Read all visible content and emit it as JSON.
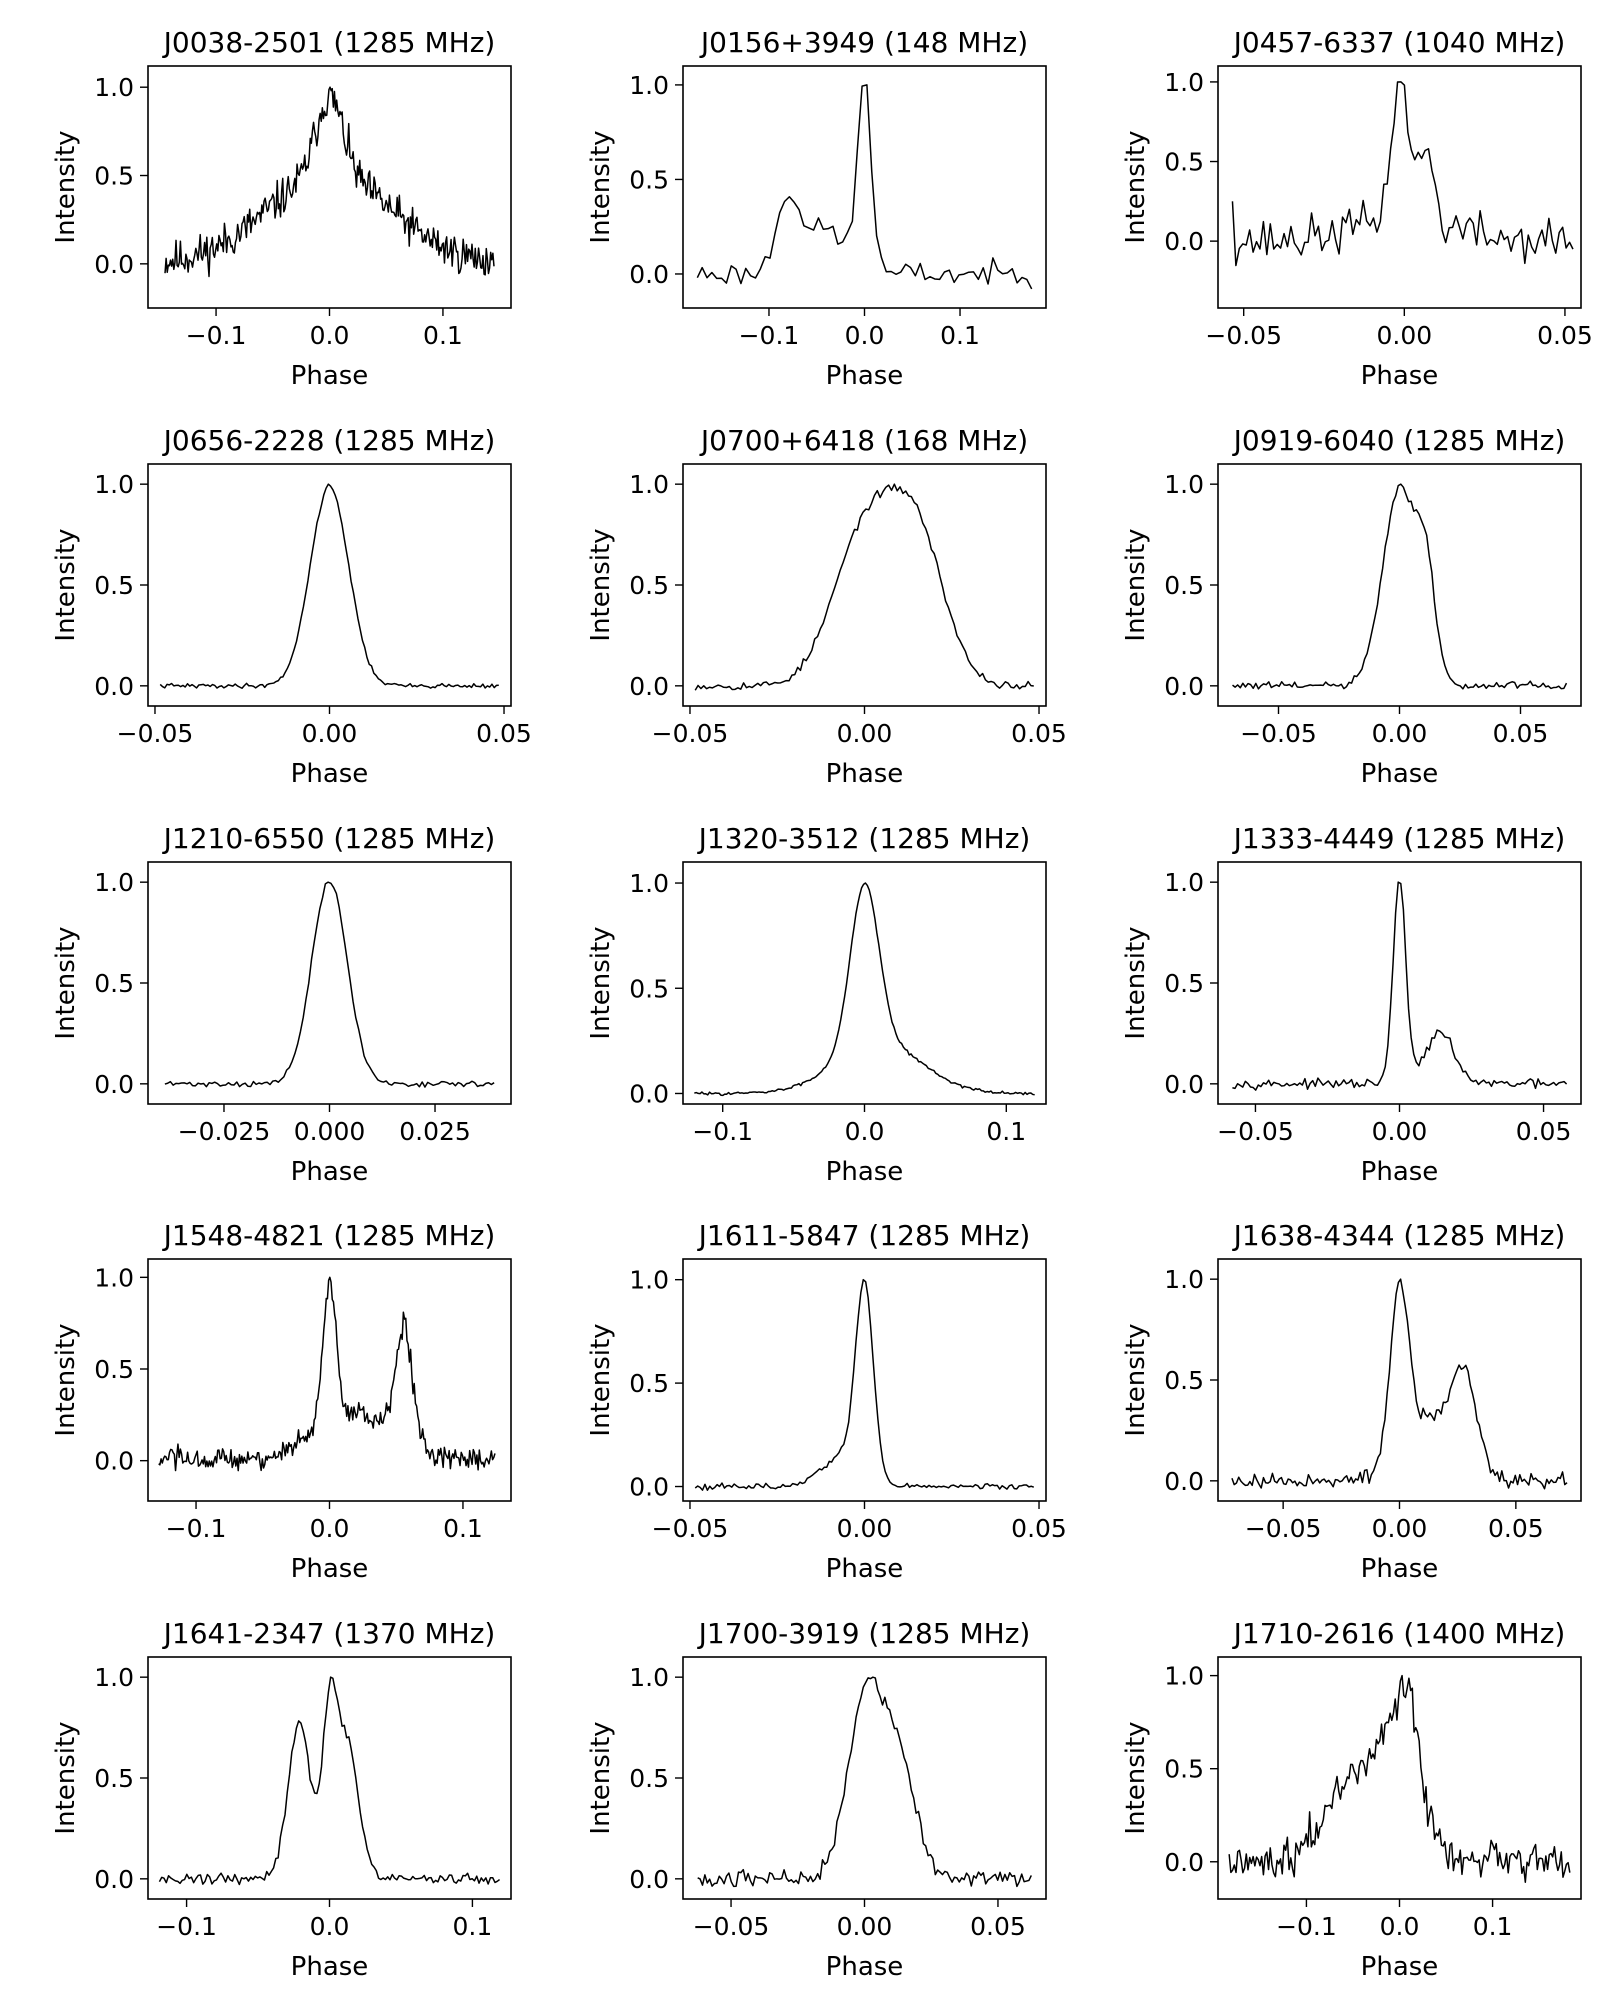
{
  "figure": {
    "type": "pulse-profile-grid",
    "rows": 5,
    "cols": 3
  },
  "colors": {
    "line": "#000000",
    "axes": "#000000",
    "background": "#ffffff"
  },
  "chart_data": [
    {
      "type": "line",
      "title": "J0038-2501 (1285 MHz)",
      "xlabel": "Phase",
      "ylabel": "Intensity",
      "xlim": [
        -0.16,
        0.16
      ],
      "ylim": [
        -0.25,
        1.12
      ],
      "xticks": [
        -0.1,
        0.0,
        0.1
      ],
      "xticklabels": [
        "−0.1",
        "0.0",
        "0.1"
      ],
      "yticks": [
        0.0,
        0.5,
        1.0
      ],
      "yticklabels": [
        "0.0",
        "0.5",
        "1.0"
      ],
      "x_range": [
        -0.145,
        0.145
      ],
      "n_points": 300,
      "noise": 0.07,
      "seed": 11,
      "components": [
        {
          "center": 0.0,
          "amp": 0.45,
          "width": 0.055
        },
        {
          "center": 0.0,
          "amp": 0.4,
          "width": 0.012
        }
      ],
      "endpoints": null
    },
    {
      "type": "line",
      "title": "J0156+3949 (148 MHz)",
      "xlabel": "Phase",
      "ylabel": "Intensity",
      "xlim": [
        -0.19,
        0.19
      ],
      "ylim": [
        -0.18,
        1.1
      ],
      "xticks": [
        -0.1,
        0.0,
        0.1
      ],
      "xticklabels": [
        "−0.1",
        "0.0",
        "0.1"
      ],
      "yticks": [
        0.0,
        0.5,
        1.0
      ],
      "yticklabels": [
        "0.0",
        "0.5",
        "1.0"
      ],
      "x_range": [
        -0.175,
        0.175
      ],
      "n_points": 70,
      "noise": 0.04,
      "seed": 23,
      "components": [
        {
          "center": 0.0,
          "amp": 0.95,
          "width": 0.007
        },
        {
          "center": -0.08,
          "amp": 0.38,
          "width": 0.012
        },
        {
          "center": -0.04,
          "amp": 0.22,
          "width": 0.02
        }
      ],
      "endpoints": null
    },
    {
      "type": "line",
      "title": "J0457-6337 (1040 MHz)",
      "xlabel": "Phase",
      "ylabel": "Intensity",
      "xlim": [
        -0.058,
        0.055
      ],
      "ylim": [
        -0.42,
        1.1
      ],
      "xticks": [
        -0.05,
        0.0,
        0.05
      ],
      "xticklabels": [
        "−0.05",
        "0.00",
        "0.05"
      ],
      "yticks": [
        0.0,
        0.5,
        1.0
      ],
      "yticklabels": [
        "0.0",
        "0.5",
        "1.0"
      ],
      "x_range": [
        -0.0535,
        0.0525
      ],
      "n_points": 100,
      "noise": 0.13,
      "seed": 37,
      "components": [
        {
          "center": 0.0,
          "amp": 0.85,
          "width": 0.0025
        },
        {
          "center": 0.007,
          "amp": 0.6,
          "width": 0.002
        },
        {
          "center": -0.003,
          "amp": 0.55,
          "width": 0.002
        },
        {
          "center": 0.0,
          "amp": 0.2,
          "width": 0.015
        }
      ],
      "endpoints": [
        0.25,
        null
      ]
    },
    {
      "type": "line",
      "title": "J0656-2228 (1285 MHz)",
      "xlabel": "Phase",
      "ylabel": "Intensity",
      "xlim": [
        -0.052,
        0.052
      ],
      "ylim": [
        -0.1,
        1.1
      ],
      "xticks": [
        -0.05,
        0.0,
        0.05
      ],
      "xticklabels": [
        "−0.05",
        "0.00",
        "0.05"
      ],
      "yticks": [
        0.0,
        0.5,
        1.0
      ],
      "yticklabels": [
        "0.0",
        "0.5",
        "1.0"
      ],
      "x_range": [
        -0.0485,
        0.0485
      ],
      "n_points": 150,
      "noise": 0.008,
      "seed": 41,
      "components": [
        {
          "center": 0.0,
          "amp": 1.0,
          "width": 0.0055
        }
      ],
      "endpoints": null
    },
    {
      "type": "line",
      "title": "J0700+6418 (168 MHz)",
      "xlabel": "Phase",
      "ylabel": "Intensity",
      "xlim": [
        -0.052,
        0.052
      ],
      "ylim": [
        -0.1,
        1.1
      ],
      "xticks": [
        -0.05,
        0.0,
        0.05
      ],
      "xticklabels": [
        "−0.05",
        "0.00",
        "0.05"
      ],
      "yticks": [
        0.0,
        0.5,
        1.0
      ],
      "yticklabels": [
        "0.0",
        "0.5",
        "1.0"
      ],
      "x_range": [
        -0.0485,
        0.0485
      ],
      "n_points": 120,
      "noise": 0.018,
      "seed": 53,
      "components": [
        {
          "center": 0.0,
          "amp": 0.9,
          "width": 0.009
        },
        {
          "center": 0.015,
          "amp": 0.85,
          "width": 0.008
        }
      ],
      "endpoints": null
    },
    {
      "type": "line",
      "title": "J0919-6040 (1285 MHz)",
      "xlabel": "Phase",
      "ylabel": "Intensity",
      "xlim": [
        -0.075,
        0.075
      ],
      "ylim": [
        -0.1,
        1.1
      ],
      "xticks": [
        -0.05,
        0.0,
        0.05
      ],
      "xticklabels": [
        "−0.05",
        "0.00",
        "0.05"
      ],
      "yticks": [
        0.0,
        0.5,
        1.0
      ],
      "yticklabels": [
        "0.0",
        "0.5",
        "1.0"
      ],
      "x_range": [
        -0.069,
        0.069
      ],
      "n_points": 130,
      "noise": 0.015,
      "seed": 61,
      "components": [
        {
          "center": 0.0,
          "amp": 0.95,
          "width": 0.007
        },
        {
          "center": 0.011,
          "amp": 0.45,
          "width": 0.004
        }
      ],
      "endpoints": null
    },
    {
      "type": "line",
      "title": "J1210-6550 (1285 MHz)",
      "xlabel": "Phase",
      "ylabel": "Intensity",
      "xlim": [
        -0.043,
        0.043
      ],
      "ylim": [
        -0.1,
        1.1
      ],
      "xticks": [
        -0.025,
        0.0,
        0.025
      ],
      "xticklabels": [
        "−0.025",
        "0.000",
        "0.025"
      ],
      "yticks": [
        0.0,
        0.5,
        1.0
      ],
      "yticklabels": [
        "0.0",
        "0.5",
        "1.0"
      ],
      "x_range": [
        -0.039,
        0.039
      ],
      "n_points": 120,
      "noise": 0.01,
      "seed": 71,
      "components": [
        {
          "center": 0.0,
          "amp": 1.0,
          "width": 0.0042
        }
      ],
      "endpoints": null
    },
    {
      "type": "line",
      "title": "J1320-3512 (1285 MHz)",
      "xlabel": "Phase",
      "ylabel": "Intensity",
      "xlim": [
        -0.128,
        0.128
      ],
      "ylim": [
        -0.05,
        1.1
      ],
      "xticks": [
        -0.1,
        0.0,
        0.1
      ],
      "xticklabels": [
        "−0.1",
        "0.0",
        "0.1"
      ],
      "yticks": [
        0.0,
        0.5,
        1.0
      ],
      "yticklabels": [
        "0.0",
        "0.5",
        "1.0"
      ],
      "x_range": [
        -0.12,
        0.12
      ],
      "n_points": 180,
      "noise": 0.005,
      "seed": 83,
      "components": [
        {
          "center": 0.0,
          "amp": 0.8,
          "width": 0.01
        },
        {
          "center": 0.01,
          "amp": 0.25,
          "width": 0.03
        }
      ],
      "endpoints": null
    },
    {
      "type": "line",
      "title": "J1333-4449 (1285 MHz)",
      "xlabel": "Phase",
      "ylabel": "Intensity",
      "xlim": [
        -0.063,
        0.063
      ],
      "ylim": [
        -0.1,
        1.1
      ],
      "xticks": [
        -0.05,
        0.0,
        0.05
      ],
      "xticklabels": [
        "−0.05",
        "0.00",
        "0.05"
      ],
      "yticks": [
        0.0,
        0.5,
        1.0
      ],
      "yticklabels": [
        "0.0",
        "0.5",
        "1.0"
      ],
      "x_range": [
        -0.058,
        0.058
      ],
      "n_points": 130,
      "noise": 0.015,
      "seed": 97,
      "components": [
        {
          "center": 0.0,
          "amp": 1.0,
          "width": 0.0022
        },
        {
          "center": 0.014,
          "amp": 0.25,
          "width": 0.005
        }
      ],
      "endpoints": null
    },
    {
      "type": "line",
      "title": "J1548-4821 (1285 MHz)",
      "xlabel": "Phase",
      "ylabel": "Intensity",
      "xlim": [
        -0.136,
        0.136
      ],
      "ylim": [
        -0.22,
        1.1
      ],
      "xticks": [
        -0.1,
        0.0,
        0.1
      ],
      "xticklabels": [
        "−0.1",
        "0.0",
        "0.1"
      ],
      "yticks": [
        0.0,
        0.5,
        1.0
      ],
      "yticklabels": [
        "0.0",
        "0.5",
        "1.0"
      ],
      "x_range": [
        -0.128,
        0.124
      ],
      "n_points": 280,
      "noise": 0.045,
      "seed": 103,
      "components": [
        {
          "center": 0.0,
          "amp": 0.75,
          "width": 0.005
        },
        {
          "center": 0.056,
          "amp": 0.6,
          "width": 0.006
        },
        {
          "center": 0.02,
          "amp": 0.25,
          "width": 0.03
        }
      ],
      "endpoints": null
    },
    {
      "type": "line",
      "title": "J1611-5847 (1285 MHz)",
      "xlabel": "Phase",
      "ylabel": "Intensity",
      "xlim": [
        -0.052,
        0.052
      ],
      "ylim": [
        -0.07,
        1.1
      ],
      "xticks": [
        -0.05,
        0.0,
        0.05
      ],
      "xticklabels": [
        "−0.05",
        "0.00",
        "0.05"
      ],
      "yticks": [
        0.0,
        0.5,
        1.0
      ],
      "yticklabels": [
        "0.0",
        "0.5",
        "1.0"
      ],
      "x_range": [
        -0.0485,
        0.0485
      ],
      "n_points": 140,
      "noise": 0.01,
      "seed": 113,
      "components": [
        {
          "center": 0.0,
          "amp": 0.9,
          "width": 0.0025
        },
        {
          "center": -0.006,
          "amp": 0.15,
          "width": 0.006
        }
      ],
      "endpoints": null
    },
    {
      "type": "line",
      "title": "J1638-4344 (1285 MHz)",
      "xlabel": "Phase",
      "ylabel": "Intensity",
      "xlim": [
        -0.078,
        0.078
      ],
      "ylim": [
        -0.1,
        1.1
      ],
      "xticks": [
        -0.05,
        0.0,
        0.05
      ],
      "xticklabels": [
        "−0.05",
        "0.00",
        "0.05"
      ],
      "yticks": [
        0.0,
        0.5,
        1.0
      ],
      "yticklabels": [
        "0.0",
        "0.5",
        "1.0"
      ],
      "x_range": [
        -0.072,
        0.072
      ],
      "n_points": 150,
      "noise": 0.025,
      "seed": 127,
      "components": [
        {
          "center": 0.0,
          "amp": 0.85,
          "width": 0.004
        },
        {
          "center": 0.028,
          "amp": 0.4,
          "width": 0.005
        },
        {
          "center": 0.015,
          "amp": 0.3,
          "width": 0.012
        }
      ],
      "endpoints": null
    },
    {
      "type": "line",
      "title": "J1641-2347 (1370 MHz)",
      "xlabel": "Phase",
      "ylabel": "Intensity",
      "xlim": [
        -0.127,
        0.127
      ],
      "ylim": [
        -0.1,
        1.1
      ],
      "xticks": [
        -0.1,
        0.0,
        0.1
      ],
      "xticklabels": [
        "−0.1",
        "0.0",
        "0.1"
      ],
      "yticks": [
        0.0,
        0.5,
        1.0
      ],
      "yticklabels": [
        "0.0",
        "0.5",
        "1.0"
      ],
      "x_range": [
        -0.119,
        0.119
      ],
      "n_points": 150,
      "noise": 0.022,
      "seed": 131,
      "components": [
        {
          "center": -0.021,
          "amp": 0.9,
          "width": 0.008
        },
        {
          "center": 0.0,
          "amp": 0.85,
          "width": 0.005
        },
        {
          "center": 0.012,
          "amp": 0.8,
          "width": 0.008
        }
      ],
      "endpoints": null
    },
    {
      "type": "line",
      "title": "J1700-3919 (1285 MHz)",
      "xlabel": "Phase",
      "ylabel": "Intensity",
      "xlim": [
        -0.068,
        0.068
      ],
      "ylim": [
        -0.1,
        1.1
      ],
      "xticks": [
        -0.05,
        0.0,
        0.05
      ],
      "xticklabels": [
        "−0.05",
        "0.00",
        "0.05"
      ],
      "yticks": [
        0.0,
        0.5,
        1.0
      ],
      "yticklabels": [
        "0.0",
        "0.5",
        "1.0"
      ],
      "x_range": [
        -0.0625,
        0.0625
      ],
      "n_points": 140,
      "noise": 0.028,
      "seed": 137,
      "components": [
        {
          "center": 0.001,
          "amp": 0.88,
          "width": 0.007
        },
        {
          "center": 0.014,
          "amp": 0.45,
          "width": 0.006
        }
      ],
      "endpoints": null
    },
    {
      "type": "line",
      "title": "J1710-2616 (1400 MHz)",
      "xlabel": "Phase",
      "ylabel": "Intensity",
      "xlim": [
        -0.195,
        0.195
      ],
      "ylim": [
        -0.2,
        1.1
      ],
      "xticks": [
        -0.1,
        0.0,
        0.1
      ],
      "xticklabels": [
        "−0.1",
        "0.0",
        "0.1"
      ],
      "yticks": [
        0.0,
        0.5,
        1.0
      ],
      "yticklabels": [
        "0.0",
        "0.5",
        "1.0"
      ],
      "x_range": [
        -0.183,
        0.183
      ],
      "n_points": 200,
      "noise": 0.06,
      "seed": 149,
      "components": [
        {
          "center": 0.0,
          "amp": 0.55,
          "width": 0.022
        },
        {
          "center": -0.05,
          "amp": 0.38,
          "width": 0.03
        },
        {
          "center": 0.01,
          "amp": 0.25,
          "width": 0.01
        }
      ],
      "endpoints": null
    }
  ]
}
